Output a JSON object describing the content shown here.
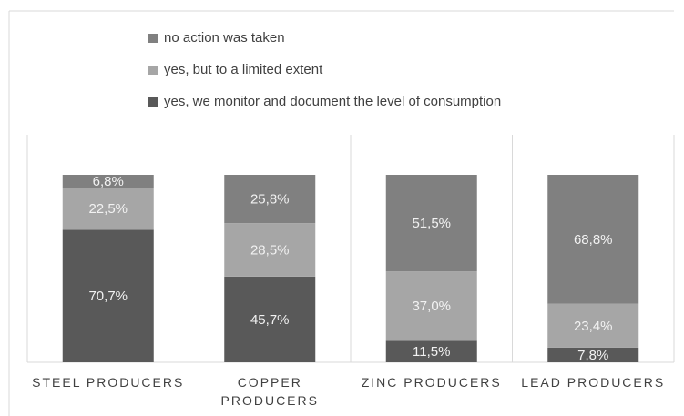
{
  "chart_data": {
    "type": "stacked_bar",
    "categories": [
      "STEEL PRODUCERS",
      "COPPER PRODUCERS",
      "ZINC PRODUCERS",
      "LEAD PRODUCERS"
    ],
    "series": [
      {
        "name": "yes, we monitor and document the level of consumption",
        "color": "#595959",
        "values": [
          70.7,
          45.7,
          11.5,
          7.8
        ],
        "value_labels": [
          "70,7%",
          "45,7%",
          "11,5%",
          "7,8%"
        ]
      },
      {
        "name": "yes, but to a limited extent",
        "color": "#a6a6a6",
        "values": [
          22.5,
          28.5,
          37.0,
          23.4
        ],
        "value_labels": [
          "22,5%",
          "28,5%",
          "37,0%",
          "23,4%"
        ]
      },
      {
        "name": "no action was taken",
        "color": "#808080",
        "values": [
          6.8,
          25.8,
          51.5,
          68.8
        ],
        "value_labels": [
          "6,8%",
          "25,8%",
          "51,5%",
          "68,8%"
        ]
      }
    ],
    "legend": "top"
  }
}
